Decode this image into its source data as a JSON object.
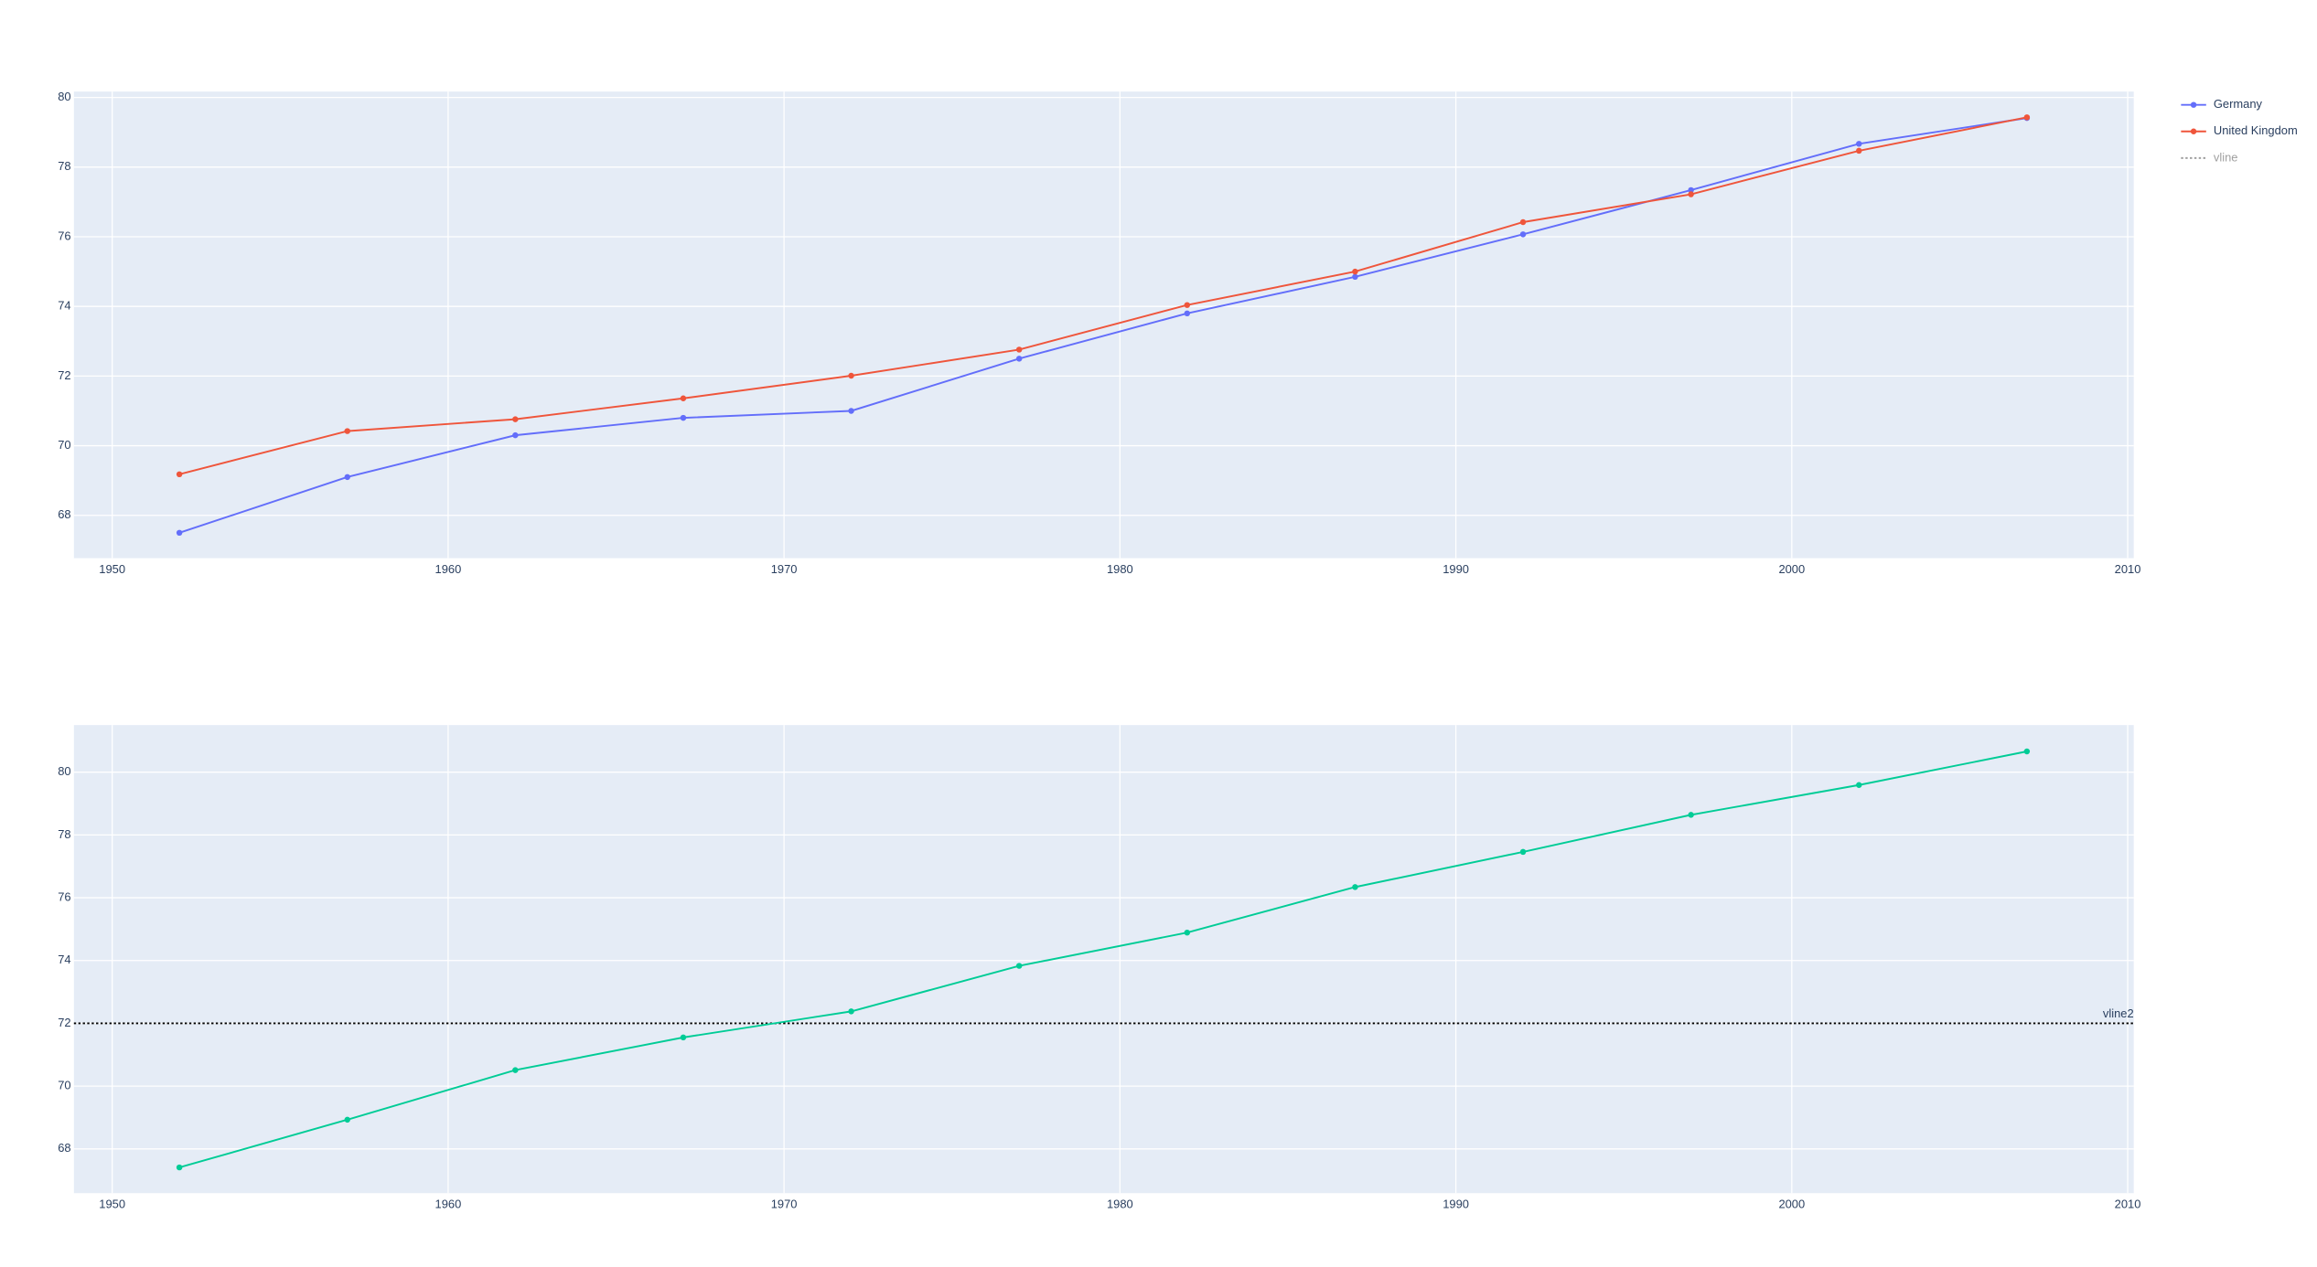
{
  "chart_data": [
    {
      "type": "line",
      "x": [
        1952,
        1957,
        1962,
        1967,
        1972,
        1977,
        1982,
        1987,
        1992,
        1997,
        2002,
        2007
      ],
      "series": [
        {
          "name": "Germany",
          "color": "#636efa",
          "values": [
            67.5,
            69.1,
            70.3,
            70.8,
            71.0,
            72.5,
            73.8,
            74.85,
            76.07,
            77.34,
            78.67,
            79.41
          ]
        },
        {
          "name": "United Kingdom",
          "color": "#ef553b",
          "values": [
            69.18,
            70.42,
            70.76,
            71.36,
            72.01,
            72.76,
            74.04,
            75.0,
            76.42,
            77.22,
            78.47,
            79.43
          ]
        }
      ],
      "legend_extra": {
        "name": "vline",
        "color": "#a0a0a0",
        "dash": "dot"
      },
      "xlim": [
        1948.86,
        2010.18
      ],
      "xticks": [
        1950,
        1960,
        1970,
        1980,
        1990,
        2000,
        2010
      ],
      "ylim": [
        66.77,
        80.17
      ],
      "yticks": [
        68,
        70,
        72,
        74,
        76,
        78,
        80
      ],
      "grid": true
    },
    {
      "type": "line",
      "x": [
        1952,
        1957,
        1962,
        1967,
        1972,
        1977,
        1982,
        1987,
        1992,
        1997,
        2002,
        2007
      ],
      "series": [
        {
          "color": "#00cc96",
          "values": [
            67.41,
            68.93,
            70.51,
            71.55,
            72.38,
            73.83,
            74.89,
            76.34,
            77.46,
            78.64,
            79.59,
            80.66
          ]
        }
      ],
      "hline": {
        "y": 72,
        "label": "vline2",
        "color": "#000000",
        "dash": "dot"
      },
      "xlim": [
        1948.86,
        2010.18
      ],
      "xticks": [
        1950,
        1960,
        1970,
        1980,
        1990,
        2000,
        2010
      ],
      "ylim": [
        66.59,
        81.5
      ],
      "yticks": [
        68,
        70,
        72,
        74,
        76,
        78,
        80
      ],
      "grid": true
    }
  ]
}
